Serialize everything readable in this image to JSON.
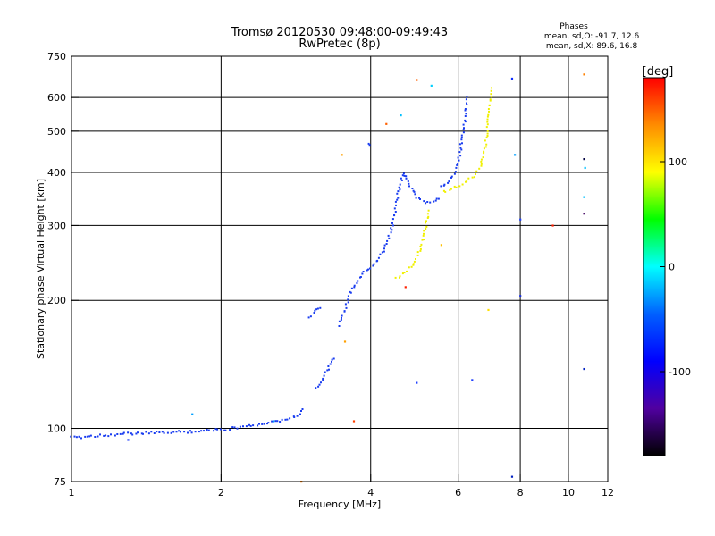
{
  "chart_data": {
    "type": "scatter",
    "title": "Tromsø 20120530 09:48:00-09:49:43",
    "subtitle": "RwPretec (8p)",
    "xlabel": "Frequency [MHz]",
    "ylabel": "Stationary phase Virtual Height [km]",
    "x_scale": "log",
    "y_scale": "log",
    "xlim": [
      1,
      12
    ],
    "ylim": [
      75,
      750
    ],
    "x_ticks": [
      1,
      2,
      4,
      6,
      8,
      10,
      12
    ],
    "y_ticks": [
      75,
      100,
      200,
      300,
      400,
      500,
      600,
      750
    ],
    "grid": true,
    "grid_x": [
      2,
      4,
      6,
      8,
      10
    ],
    "grid_y": [
      100,
      200,
      300,
      400,
      500,
      600
    ],
    "phases_title": "Phases",
    "phases_lines": [
      "mean, sd,O: -91.7, 12.6",
      "mean, sd,X:  89.6, 16.8"
    ],
    "colorbar": {
      "label": "[deg]",
      "range": [
        -180,
        180
      ],
      "ticks": [
        100,
        0,
        -100
      ],
      "colors": [
        "#ff0000",
        "#ff8c00",
        "#ffff00",
        "#00ff00",
        "#00ffff",
        "#0060ff",
        "#0000ff",
        "#5000a0",
        "#000000"
      ]
    },
    "series": [
      {
        "name": "O-mode (blue)",
        "color": "#1a3df0",
        "segments": [
          [
            [
              1.0,
              95
            ],
            [
              1.1,
              96
            ],
            [
              1.25,
              97
            ],
            [
              1.45,
              97.5
            ],
            [
              1.6,
              98
            ],
            [
              1.8,
              98.5
            ],
            [
              1.95,
              99
            ]
          ],
          [
            [
              1.95,
              99
            ],
            [
              2.1,
              100
            ],
            [
              2.3,
              101.5
            ],
            [
              2.5,
              103
            ],
            [
              2.7,
              104.5
            ],
            [
              2.85,
              107
            ],
            [
              2.95,
              112
            ]
          ],
          [
            [
              3.0,
              183
            ],
            [
              3.1,
              188
            ],
            [
              3.2,
              195
            ]
          ],
          [
            [
              3.1,
              125
            ],
            [
              3.2,
              130
            ],
            [
              3.3,
              140
            ],
            [
              3.4,
              148
            ]
          ],
          [
            [
              3.45,
              175
            ],
            [
              3.55,
              190
            ],
            [
              3.65,
              210
            ],
            [
              3.75,
              220
            ],
            [
              3.85,
              230
            ],
            [
              3.95,
              238
            ],
            [
              4.05,
              240
            ],
            [
              4.2,
              255
            ],
            [
              4.35,
              280
            ],
            [
              4.45,
              310
            ],
            [
              4.55,
              360
            ],
            [
              4.65,
              400
            ],
            [
              4.8,
              370
            ],
            [
              4.95,
              350
            ],
            [
              5.15,
              340
            ],
            [
              5.35,
              340
            ],
            [
              5.55,
              350
            ]
          ],
          [
            [
              5.55,
              370
            ],
            [
              5.7,
              380
            ],
            [
              5.85,
              390
            ],
            [
              6.0,
              420
            ],
            [
              6.1,
              470
            ],
            [
              6.2,
              540
            ],
            [
              6.27,
              610
            ]
          ],
          [
            [
              3.95,
              465
            ],
            [
              4.0,
              468
            ]
          ]
        ]
      },
      {
        "name": "X-mode (yellow)",
        "color": "#f0f000",
        "segments": [
          [
            [
              4.5,
              225
            ],
            [
              4.7,
              233
            ],
            [
              4.9,
              245
            ],
            [
              5.05,
              265
            ],
            [
              5.15,
              295
            ],
            [
              5.25,
              330
            ]
          ],
          [
            [
              5.6,
              360
            ],
            [
              5.9,
              368
            ],
            [
              6.2,
              378
            ],
            [
              6.45,
              392
            ],
            [
              6.65,
              412
            ],
            [
              6.8,
              460
            ],
            [
              6.92,
              540
            ],
            [
              7.0,
              640
            ]
          ]
        ]
      }
    ],
    "scattered_points": [
      {
        "x": 1.3,
        "y": 94,
        "color": "#2040ff"
      },
      {
        "x": 1.75,
        "y": 108,
        "color": "#00a0ff"
      },
      {
        "x": 2.55,
        "y": 104,
        "color": "#00a0ff"
      },
      {
        "x": 2.9,
        "y": 75,
        "color": "#ff8000"
      },
      {
        "x": 3.5,
        "y": 440,
        "color": "#ffa000"
      },
      {
        "x": 3.55,
        "y": 160,
        "color": "#ffa000"
      },
      {
        "x": 3.7,
        "y": 104,
        "color": "#ff4000"
      },
      {
        "x": 4.3,
        "y": 520,
        "color": "#ff6000"
      },
      {
        "x": 4.6,
        "y": 545,
        "color": "#00c0ff"
      },
      {
        "x": 4.7,
        "y": 215,
        "color": "#ff2000"
      },
      {
        "x": 4.95,
        "y": 660,
        "color": "#ff6000"
      },
      {
        "x": 4.95,
        "y": 128,
        "color": "#2040ff"
      },
      {
        "x": 5.3,
        "y": 640,
        "color": "#00d0ff"
      },
      {
        "x": 5.55,
        "y": 270,
        "color": "#ffc000"
      },
      {
        "x": 6.4,
        "y": 130,
        "color": "#2040ff"
      },
      {
        "x": 6.9,
        "y": 190,
        "color": "#ffe000"
      },
      {
        "x": 7.7,
        "y": 665,
        "color": "#1030ff"
      },
      {
        "x": 7.8,
        "y": 440,
        "color": "#00a0ff"
      },
      {
        "x": 7.7,
        "y": 77,
        "color": "#0020c0"
      },
      {
        "x": 8.0,
        "y": 310,
        "color": "#2040ff"
      },
      {
        "x": 8.0,
        "y": 205,
        "color": "#1a30e0"
      },
      {
        "x": 9.3,
        "y": 300,
        "color": "#ff2000"
      },
      {
        "x": 10.75,
        "y": 680,
        "color": "#ff8000"
      },
      {
        "x": 10.75,
        "y": 430,
        "color": "#000040"
      },
      {
        "x": 10.8,
        "y": 410,
        "color": "#00c0ff"
      },
      {
        "x": 10.75,
        "y": 350,
        "color": "#00c0ff"
      },
      {
        "x": 10.75,
        "y": 320,
        "color": "#400060"
      },
      {
        "x": 10.75,
        "y": 138,
        "color": "#0020c0"
      }
    ]
  }
}
